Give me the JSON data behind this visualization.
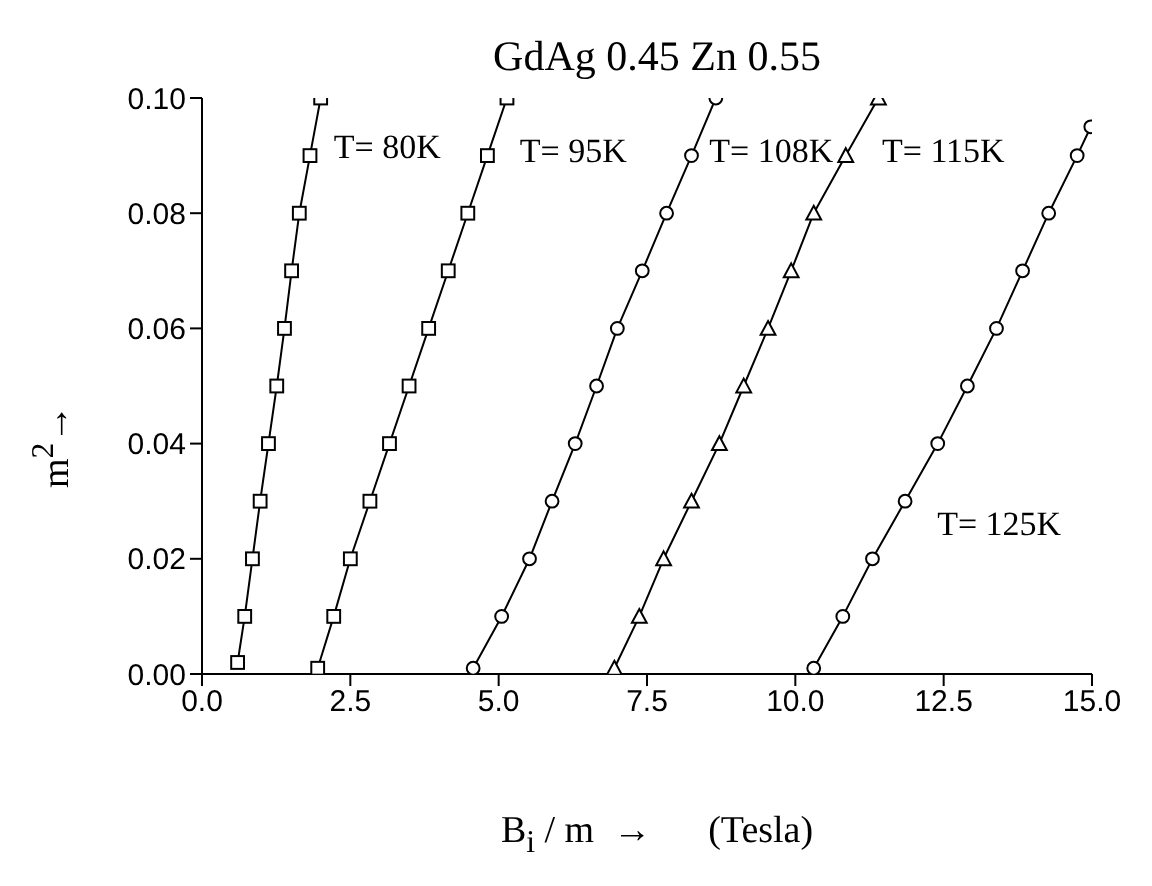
{
  "chart_data": {
    "type": "line",
    "title": "GdAg 0.45 Zn 0.55",
    "xlabel": "B$_{i}$ / m  →      (Tesla)",
    "ylabel": "m$^{2}$→",
    "xlim": [
      0,
      15
    ],
    "xticks": [
      {
        "value": 0,
        "label": "0.0"
      },
      {
        "value": 2.5,
        "label": "2.5"
      },
      {
        "value": 5,
        "label": "5.0"
      },
      {
        "value": 7.5,
        "label": "7.5"
      },
      {
        "value": 10,
        "label": "10.0"
      },
      {
        "value": 12.5,
        "label": "12.5"
      },
      {
        "value": 15,
        "label": "15.0"
      }
    ],
    "ylim": [
      0,
      0.1
    ],
    "yticks": [
      {
        "value": 0,
        "label": "0.00"
      },
      {
        "value": 0.02,
        "label": "0.02"
      },
      {
        "value": 0.04,
        "label": "0.04"
      },
      {
        "value": 0.06,
        "label": "0.06"
      },
      {
        "value": 0.08,
        "label": "0.08"
      },
      {
        "value": 0.1,
        "label": "0.10"
      }
    ],
    "grid": false,
    "legend": false,
    "line_style": "solid",
    "series": [
      {
        "name": "T= 80K",
        "color": "#000000",
        "marker": "square",
        "x": [
          0.6,
          0.72,
          0.85,
          0.98,
          1.12,
          1.26,
          1.39,
          1.51,
          1.64,
          1.82,
          2.0
        ],
        "values": [
          0.002,
          0.01,
          0.02,
          0.03,
          0.04,
          0.05,
          0.06,
          0.07,
          0.08,
          0.09,
          0.1
        ]
      },
      {
        "name": "T= 95K",
        "color": "#000000",
        "marker": "square",
        "x": [
          1.95,
          2.22,
          2.5,
          2.83,
          3.16,
          3.49,
          3.82,
          4.15,
          4.48,
          4.81,
          5.14
        ],
        "values": [
          0.001,
          0.01,
          0.02,
          0.03,
          0.04,
          0.05,
          0.06,
          0.07,
          0.08,
          0.09,
          0.1
        ]
      },
      {
        "name": "T= 108K",
        "color": "#000000",
        "marker": "circle",
        "x": [
          4.57,
          5.05,
          5.52,
          5.9,
          6.29,
          6.65,
          7.0,
          7.42,
          7.83,
          8.25,
          8.66
        ],
        "values": [
          0.001,
          0.01,
          0.02,
          0.03,
          0.04,
          0.05,
          0.06,
          0.07,
          0.08,
          0.09,
          0.1
        ]
      },
      {
        "name": "T= 115K",
        "color": "#000000",
        "marker": "triangle",
        "x": [
          6.95,
          7.37,
          7.78,
          8.25,
          8.72,
          9.13,
          9.54,
          9.93,
          10.31,
          10.85,
          11.4
        ],
        "values": [
          0.001,
          0.01,
          0.02,
          0.03,
          0.04,
          0.05,
          0.06,
          0.07,
          0.08,
          0.09,
          0.1
        ]
      },
      {
        "name": "T= 125K",
        "color": "#000000",
        "marker": "circle",
        "x": [
          10.31,
          10.8,
          11.3,
          11.85,
          12.4,
          12.9,
          13.39,
          13.83,
          14.27,
          14.75,
          14.98
        ],
        "values": [
          0.001,
          0.01,
          0.02,
          0.03,
          0.04,
          0.05,
          0.06,
          0.07,
          0.08,
          0.09,
          0.095
        ]
      }
    ]
  }
}
